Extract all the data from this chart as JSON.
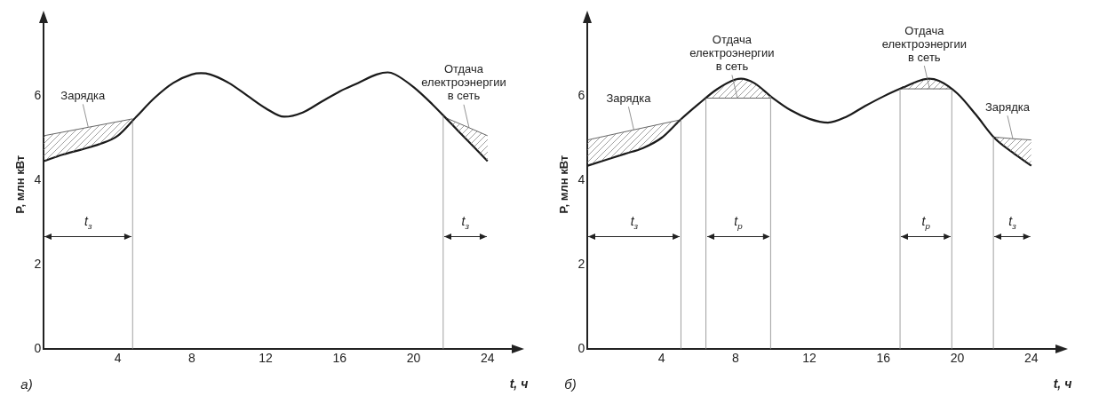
{
  "chart_data": [
    {
      "type": "line",
      "xlabel": "t, ч",
      "ylabel": "P, млн кВт",
      "xlim": [
        0,
        25.5
      ],
      "ylim": [
        0,
        7.8
      ],
      "xticks": [
        4,
        8,
        12,
        16,
        20,
        24
      ],
      "yticks": [
        0,
        2,
        4,
        6
      ],
      "series": [
        {
          "type": "line",
          "color": "#1a1a1a",
          "x": [
            0,
            1,
            2,
            3,
            4,
            5,
            6,
            7,
            8,
            8.5,
            9,
            10,
            11,
            12,
            13,
            14,
            15,
            16,
            17,
            18,
            18.6,
            19,
            20,
            21,
            22,
            23,
            24
          ],
          "values": [
            4.45,
            4.6,
            4.72,
            4.85,
            5.05,
            5.5,
            5.95,
            6.3,
            6.5,
            6.53,
            6.5,
            6.3,
            6,
            5.7,
            5.5,
            5.6,
            5.85,
            6.1,
            6.3,
            6.5,
            6.55,
            6.5,
            6.2,
            5.8,
            5.35,
            4.9,
            4.45
          ]
        },
        {
          "type": "line",
          "color": "#555555",
          "x": [
            0,
            2.4,
            4.8
          ],
          "values": [
            5.05,
            5.25,
            5.45
          ]
        },
        {
          "type": "line",
          "color": "#555555",
          "x": [
            21.6,
            23,
            24
          ],
          "values": [
            5.5,
            5.24,
            5.05
          ]
        }
      ],
      "ref_lines": [
        {
          "axis": "x",
          "value": 4.8
        },
        {
          "axis": "x",
          "value": 21.6
        }
      ],
      "annotations": [
        {
          "text": "Зарядка",
          "x": 2.4,
          "y": 5.25
        },
        {
          "text": "Отдача\nелектроэнергии\nв сеть",
          "x": 23,
          "y": 5.24
        },
        "t$_{з}$",
        "t$_{з}$",
        "а)"
      ]
    },
    {
      "type": "line",
      "xlabel": "t, ч",
      "ylabel": "P, млн кВт",
      "xlim": [
        0,
        25.5
      ],
      "ylim": [
        0,
        7.8
      ],
      "xticks": [
        4,
        8,
        12,
        16,
        20,
        24
      ],
      "yticks": [
        0,
        2,
        4,
        6
      ],
      "series": [
        {
          "type": "line",
          "color": "#1a1a1a",
          "x": [
            0,
            1,
            2,
            3,
            4,
            5,
            6,
            7,
            8,
            8.3,
            9,
            10,
            11,
            12,
            13,
            14,
            15,
            16,
            17,
            18,
            18.45,
            19,
            20,
            21,
            22,
            23,
            24
          ],
          "values": [
            4.34,
            4.48,
            4.62,
            4.76,
            5,
            5.42,
            5.8,
            6.15,
            6.38,
            6.4,
            6.3,
            5.95,
            5.65,
            5.45,
            5.36,
            5.5,
            5.75,
            5.98,
            6.18,
            6.36,
            6.4,
            6.35,
            6.05,
            5.55,
            5,
            4.65,
            4.34
          ]
        },
        {
          "type": "line",
          "color": "#555555",
          "x": [
            0,
            2.5,
            5.05
          ],
          "values": [
            4.95,
            5.19,
            5.43
          ]
        },
        {
          "type": "line",
          "color": "#555555",
          "x": [
            6.4,
            8.1,
            9.9
          ],
          "values": [
            5.94,
            5.94,
            5.94
          ]
        },
        {
          "type": "line",
          "color": "#555555",
          "x": [
            16.9,
            18.5,
            19.7
          ],
          "values": [
            6.16,
            6.16,
            6.16
          ]
        },
        {
          "type": "line",
          "color": "#555555",
          "x": [
            21.95,
            23,
            24
          ],
          "values": [
            5.02,
            4.98,
            4.95
          ]
        }
      ],
      "ref_lines": [
        {
          "axis": "x",
          "value": 5.05
        },
        {
          "axis": "x",
          "value": 6.4
        },
        {
          "axis": "x",
          "value": 9.9
        },
        {
          "axis": "x",
          "value": 16.9
        },
        {
          "axis": "x",
          "value": 19.7
        },
        {
          "axis": "x",
          "value": 21.95
        }
      ],
      "annotations": [
        {
          "text": "Зарядка",
          "x": 2.5,
          "y": 5.19
        },
        {
          "text": "Отдача\nелектроэнергии\nв сеть",
          "x": 8.1,
          "y": 5.94
        },
        {
          "text": "Отдача\nелектроэнергии\nв сеть",
          "x": 18.5,
          "y": 6.16
        },
        {
          "text": "Зарядка",
          "x": 23,
          "y": 4.98
        },
        "t$_{з}$",
        "t$_{р}$",
        "t$_{р}$",
        "t$_{з}$",
        "б)"
      ]
    }
  ]
}
